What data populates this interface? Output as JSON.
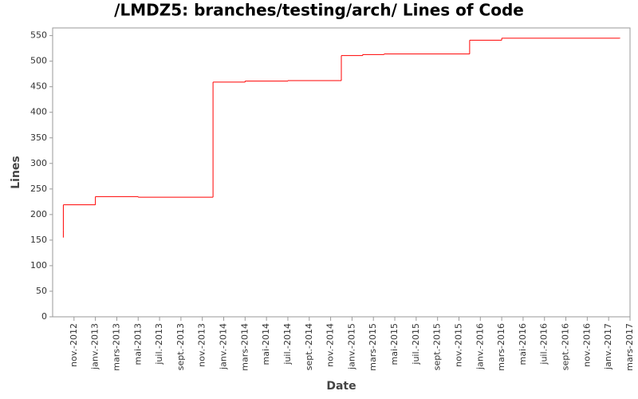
{
  "chart_data": {
    "type": "step",
    "title": "/LMDZ5: branches/testing/arch/ Lines of Code",
    "x_label": "Date",
    "y_label": "Lines",
    "color": "#ff0000",
    "grid": false,
    "x": [
      "2012-10",
      "2012-10",
      "2012-10",
      "2013-01",
      "2013-05",
      "2013-12",
      "2014-03",
      "2014-07",
      "2014-12",
      "2015-02",
      "2015-04",
      "2015-12",
      "2016-03",
      "2017-02"
    ],
    "values": [
      155,
      170,
      219,
      235,
      234,
      459,
      461,
      462,
      511,
      513,
      514,
      541,
      545,
      545
    ],
    "xlim": [
      "2012-09",
      "2017-03"
    ],
    "xticks": [
      {
        "value": "2012-11",
        "label": "nov.-2012"
      },
      {
        "value": "2013-01",
        "label": "janv.-2013"
      },
      {
        "value": "2013-03",
        "label": "mars-2013"
      },
      {
        "value": "2013-05",
        "label": "mai-2013"
      },
      {
        "value": "2013-07",
        "label": "juil.-2013"
      },
      {
        "value": "2013-09",
        "label": "sept.-2013"
      },
      {
        "value": "2013-11",
        "label": "nov.-2013"
      },
      {
        "value": "2014-01",
        "label": "janv.-2014"
      },
      {
        "value": "2014-03",
        "label": "mars-2014"
      },
      {
        "value": "2014-05",
        "label": "mai-2014"
      },
      {
        "value": "2014-07",
        "label": "juil.-2014"
      },
      {
        "value": "2014-09",
        "label": "sept.-2014"
      },
      {
        "value": "2014-11",
        "label": "nov.-2014"
      },
      {
        "value": "2015-01",
        "label": "janv.-2015"
      },
      {
        "value": "2015-03",
        "label": "mars-2015"
      },
      {
        "value": "2015-05",
        "label": "mai-2015"
      },
      {
        "value": "2015-07",
        "label": "juil.-2015"
      },
      {
        "value": "2015-09",
        "label": "sept.-2015"
      },
      {
        "value": "2015-11",
        "label": "nov.-2015"
      },
      {
        "value": "2016-01",
        "label": "janv.-2016"
      },
      {
        "value": "2016-03",
        "label": "mars-2016"
      },
      {
        "value": "2016-05",
        "label": "mai-2016"
      },
      {
        "value": "2016-07",
        "label": "juil.-2016"
      },
      {
        "value": "2016-09",
        "label": "sept.-2016"
      },
      {
        "value": "2016-11",
        "label": "nov.-2016"
      },
      {
        "value": "2017-01",
        "label": "janv.-2017"
      },
      {
        "value": "2017-03",
        "label": "mars-2017"
      }
    ],
    "ylim": [
      0,
      565
    ],
    "yticks": [
      0,
      50,
      100,
      150,
      200,
      250,
      300,
      350,
      400,
      450,
      500,
      550
    ]
  }
}
